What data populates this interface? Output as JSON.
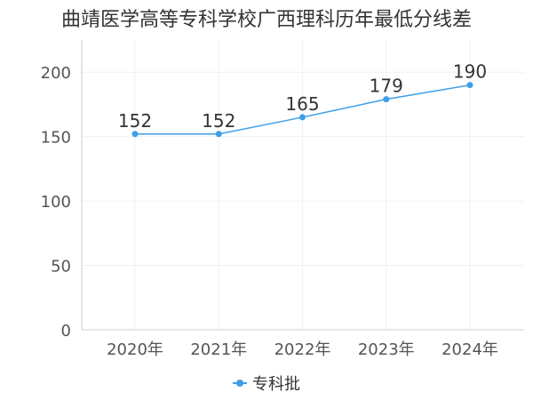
{
  "chart_data": {
    "type": "line",
    "title": "曲靖医学高等专科学校广西理科历年最低分线差",
    "categories": [
      "2020年",
      "2021年",
      "2022年",
      "2023年",
      "2024年"
    ],
    "series": [
      {
        "name": "专科批",
        "values": [
          152,
          152,
          165,
          179,
          190
        ],
        "color": "#3e9ee8"
      }
    ],
    "yticks": [
      0,
      50,
      100,
      150,
      200
    ],
    "ylim": [
      0,
      225
    ],
    "grid": true,
    "legend_position": "bottom"
  }
}
